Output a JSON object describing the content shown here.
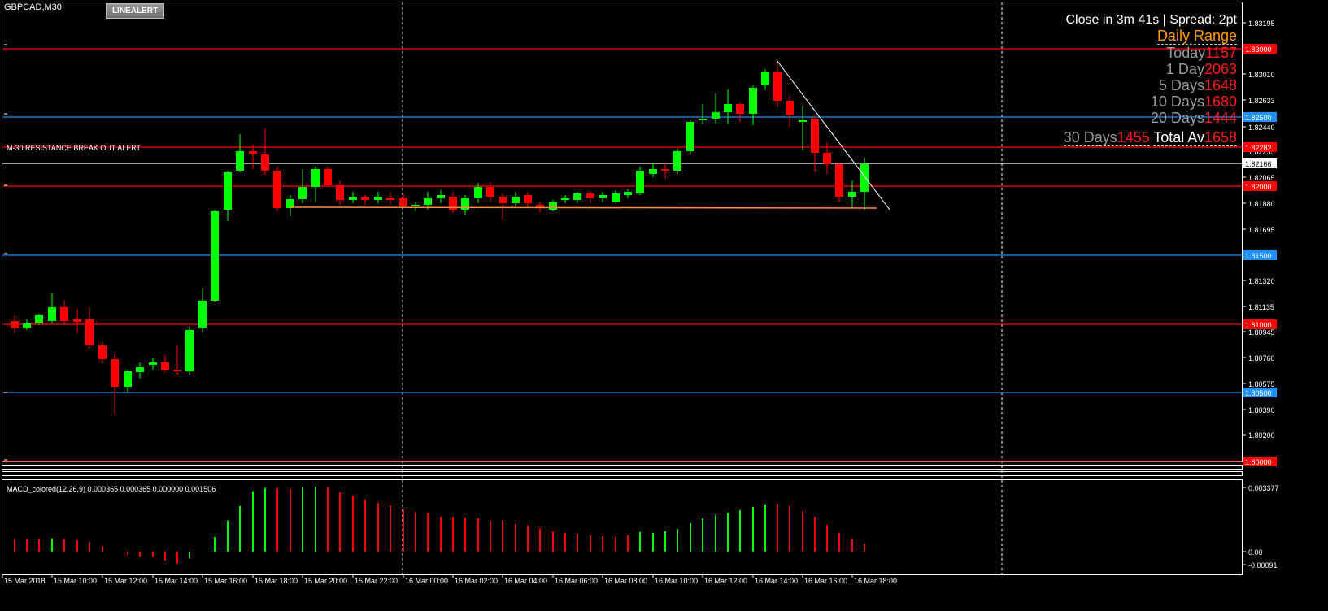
{
  "window": {
    "symbol_label": "GBPCAD,M30",
    "line_alert_button": "LINEALERT"
  },
  "hud": {
    "close_text": "Close in 3m 41s | Spread: 2pt",
    "daily_range_title": "Daily Range",
    "rows": [
      {
        "label": "Today",
        "value": "1157"
      },
      {
        "label": "1 Day",
        "value": "2063"
      },
      {
        "label": "5 Days",
        "value": "1648"
      },
      {
        "label": "10 Days",
        "value": "1680"
      },
      {
        "label": "20 Days",
        "value": "1444"
      },
      {
        "label": "30 Days",
        "value": "1455"
      }
    ],
    "total": {
      "label": "Total Av",
      "value": "1658"
    }
  },
  "annotations": {
    "resistance_alert": "M-30 RESISTANCE BREAK OUT ALERT"
  },
  "price_axis": {
    "ticks": [
      "1.83195",
      "1.83010",
      "1.82633",
      "1.82440",
      "1.82255",
      "1.82065",
      "1.81880",
      "1.81695",
      "1.81320",
      "1.81135",
      "1.80945",
      "1.80760",
      "1.80575",
      "1.80390",
      "1.80200"
    ],
    "level_tags": [
      {
        "label": "1.83000",
        "color": "#ff0000"
      },
      {
        "label": "1.82500",
        "color": "#1e90ff"
      },
      {
        "label": "1.82282",
        "color": "#ff0000"
      },
      {
        "label": "1.82166",
        "color": "#000000"
      },
      {
        "label": "1.82000",
        "color": "#ff0000"
      },
      {
        "label": "1.81500",
        "color": "#1e90ff"
      },
      {
        "label": "1.81000",
        "color": "#ff0000"
      },
      {
        "label": "1.80500",
        "color": "#1e90ff"
      },
      {
        "label": "1.80000",
        "color": "#ff0000"
      }
    ]
  },
  "time_axis": {
    "labels": [
      "15 Mar 2018",
      "15 Mar 10:00",
      "15 Mar 12:00",
      "15 Mar 14:00",
      "15 Mar 16:00",
      "15 Mar 18:00",
      "15 Mar 20:00",
      "15 Mar 22:00",
      "16 Mar 00:00",
      "16 Mar 02:00",
      "16 Mar 04:00",
      "16 Mar 06:00",
      "16 Mar 08:00",
      "16 Mar 10:00",
      "16 Mar 12:00",
      "16 Mar 14:00",
      "16 Mar 16:00",
      "16 Mar 18:00"
    ]
  },
  "macd": {
    "label": "MACD_colored(12,26,9) 0.000365 0.000365 0.000000 0.001506",
    "axis_ticks": [
      "0.003377",
      "0.00",
      "-0.00091"
    ]
  },
  "colors": {
    "bull": "#00ff00",
    "bear": "#ff0000",
    "support": "#ff8c40",
    "level_red": "#ff0000",
    "level_blue": "#1e90ff"
  }
}
